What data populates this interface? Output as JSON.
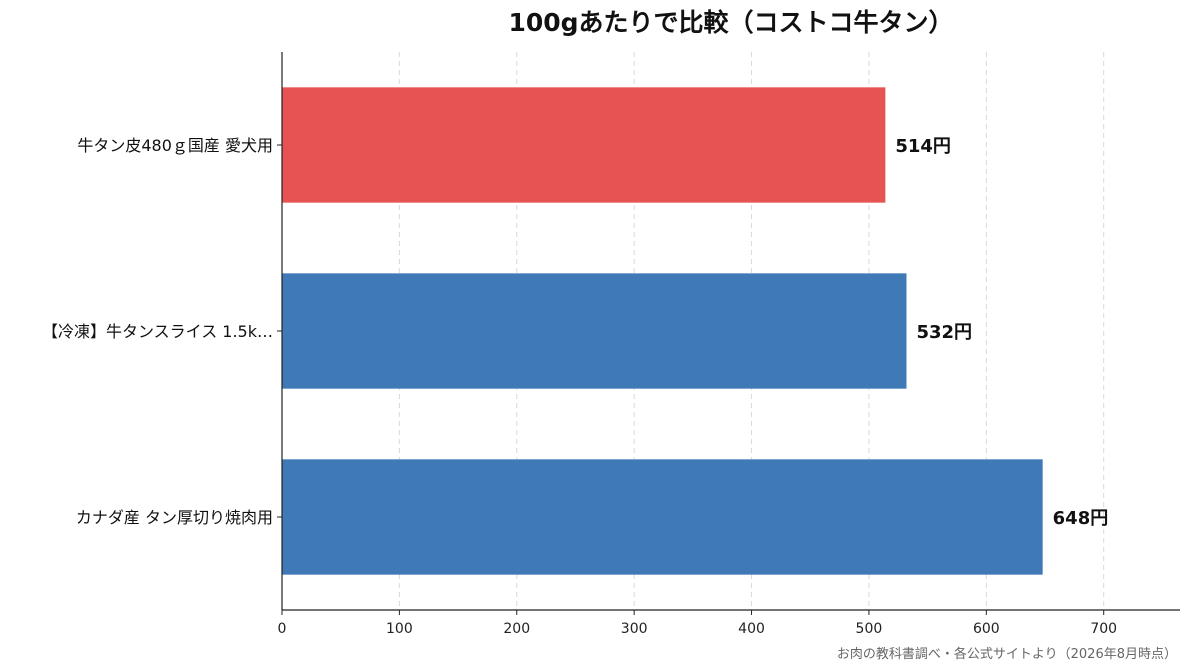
{
  "chart_data": {
    "type": "bar",
    "orientation": "horizontal",
    "title": "100gあたりで比較（コストコ牛タン）",
    "categories": [
      "牛タン皮480ｇ国産 愛犬用",
      "【冷凍】牛タンスライス 1.5k…",
      "カナダ産 タン厚切り焼肉用"
    ],
    "values": [
      514,
      532,
      648
    ],
    "data_labels": [
      "514円",
      "532円",
      "648円"
    ],
    "bar_colors": [
      "#e75252",
      "#3f7ab6",
      "#3f7ab6"
    ],
    "xlim": [
      0,
      765
    ],
    "xticks": [
      0,
      100,
      200,
      300,
      400,
      500,
      600,
      700
    ],
    "xlabel": "",
    "ylabel": "",
    "grid": "vertical dashed",
    "legend": "none"
  },
  "source_note": "お肉の教科書調べ・各公式サイトより（2026年8月時点）"
}
